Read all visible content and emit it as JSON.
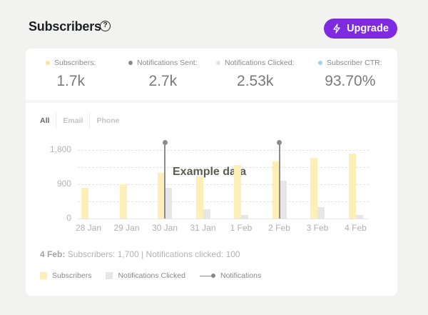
{
  "header": {
    "title": "Subscribers",
    "help_icon": "?",
    "upgrade_label": "Upgrade",
    "upgrade_color": "#7d2ae0"
  },
  "stats": [
    {
      "label": "Subscribers:",
      "value": "1.7k",
      "dot_color": "#fde49a"
    },
    {
      "label": "Notifications Sent:",
      "value": "2.7k",
      "dot_color": "#8a8a8a"
    },
    {
      "label": "Notifications Clicked:",
      "value": "2.53k",
      "dot_color": "#e3e3e3"
    },
    {
      "label": "Subscriber CTR:",
      "value": "93.70%",
      "dot_color": "#9dd2f5"
    }
  ],
  "tabs": [
    {
      "label": "All",
      "active": true
    },
    {
      "label": "Email",
      "active": false
    },
    {
      "label": "Phone",
      "active": false
    }
  ],
  "chart_data": {
    "type": "bar",
    "title": "Subscribers",
    "annotation": "Example data",
    "categories": [
      "28 Jan",
      "29 Jan",
      "30 Jan",
      "31 Jan",
      "1 Feb",
      "2 Feb",
      "3 Feb",
      "4 Feb"
    ],
    "series": [
      {
        "name": "Subscribers",
        "type": "bar",
        "color": "#fdefb7",
        "values": [
          800,
          900,
          1200,
          1100,
          1400,
          1500,
          1600,
          1700
        ]
      },
      {
        "name": "Notifications Clicked",
        "type": "bar",
        "color": "#e6e6e6",
        "values": [
          0,
          0,
          800,
          250,
          100,
          1000,
          300,
          100
        ]
      },
      {
        "name": "Notifications",
        "type": "event-line",
        "color": "#8c8c8c",
        "at": [
          "30 Jan",
          "2 Feb"
        ]
      }
    ],
    "yticks": [
      "0",
      "900",
      "1,800"
    ],
    "ylim": [
      0,
      1800
    ],
    "grid": true,
    "legend_position": "bottom"
  },
  "caption": {
    "date": "4 Feb:",
    "text": "Subscribers: 1,700 | Notifications clicked: 100"
  },
  "legend": [
    {
      "label": "Subscribers"
    },
    {
      "label": "Notifications Clicked"
    },
    {
      "label": "Notifications"
    }
  ]
}
